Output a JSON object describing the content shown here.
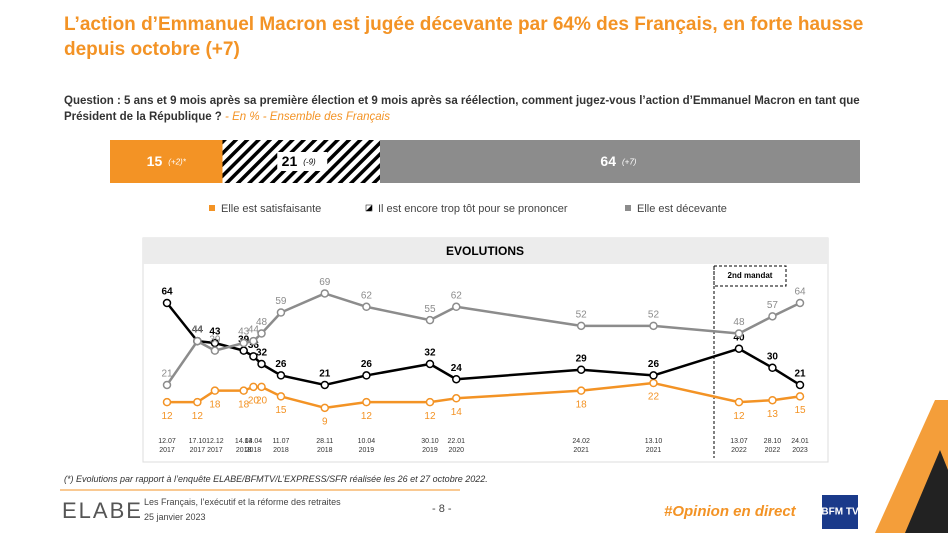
{
  "title": "L’action d’Emmanuel Macron est jugée décevante par 64% des Français, en forte hausse depuis octobre (+7)",
  "question": "Question : 5 ans et 9 mois après sa première élection et 9 mois après sa réélection, comment jugez-vous l’action d’Emmanuel Macron en tant que Président de la République ?",
  "question_note": "- En % - Ensemble des Français",
  "footnote": "(*) Evolutions par rapport à l’enquête ELABE/BFMTV/L’EXPRESS/SFR réalisée les 26 et 27 octobre 2022.",
  "footer": {
    "brand": "ELABE",
    "study": "Les Français, l’exécutif et la réforme des retraites",
    "date": "25 janvier 2023",
    "page": "- 8 -",
    "hashtag": "#Opinion en direct",
    "partner": "BFM TV"
  },
  "chart_data": [
    {
      "type": "stacked_bar",
      "orientation": "horizontal",
      "xlim": [
        0,
        100
      ],
      "legend": "bottom",
      "series": [
        {
          "name": "Elle est satisfaisante",
          "color": "#f39325",
          "pattern": "solid",
          "values": [
            15
          ],
          "change_labels": [
            "(+2)*"
          ]
        },
        {
          "name": "Il est encore trop tôt pour se prononcer",
          "color": "#000000",
          "pattern": "hatch",
          "values": [
            21
          ],
          "change_labels": [
            "(-9)"
          ]
        },
        {
          "name": "Elle est décevante",
          "color": "#8c8c8c",
          "pattern": "solid",
          "values": [
            64
          ],
          "change_labels": [
            "(+7)"
          ]
        }
      ]
    },
    {
      "type": "line",
      "title": "EVOLUTIONS",
      "annotation": "2nd mandat",
      "x": [
        "2017-07-12",
        "2017-10-17",
        "2017-12-12",
        "2018-03-14",
        "2018-04-14",
        "2018-05-10",
        "2018-07-11",
        "2018-11-28",
        "2019-04-10",
        "2019-10-30",
        "2020-01-22",
        "2021-02-24",
        "2021-10-13",
        "2022-07-13",
        "2022-10-28",
        "2023-01-24"
      ],
      "xticks": [
        {
          "value": "2017-07-12",
          "label": "12.07 2017"
        },
        {
          "value": "2017-10-17",
          "label": "17.10 2017"
        },
        {
          "value": "2017-12-12",
          "label": "12.12 2017"
        },
        {
          "value": "2018-03-14",
          "label": "14.03 2018"
        },
        {
          "value": "2018-04-14",
          "label": "14.04 2018"
        },
        {
          "value": "2018-07-11",
          "label": "11.07 2018"
        },
        {
          "value": "2018-11-28",
          "label": "28.11 2018"
        },
        {
          "value": "2019-04-10",
          "label": "10.04 2019"
        },
        {
          "value": "2019-10-30",
          "label": "30.10 2019"
        },
        {
          "value": "2020-01-22",
          "label": "22.01 2020"
        },
        {
          "value": "2021-02-24",
          "label": "24.02 2021"
        },
        {
          "value": "2021-10-13",
          "label": "13.10 2021"
        },
        {
          "value": "2022-07-13",
          "label": "13.07 2022"
        },
        {
          "value": "2022-10-28",
          "label": "28.10 2022"
        },
        {
          "value": "2023-01-24",
          "label": "24.01 2023"
        }
      ],
      "ylim": [
        0,
        75
      ],
      "grid": false,
      "series": [
        {
          "color": "#f39325",
          "values": [
            12,
            12,
            18,
            18,
            20,
            20,
            15,
            9,
            12,
            12,
            14,
            18,
            22,
            12,
            13,
            15
          ]
        },
        {
          "color": "#000000",
          "values": [
            64,
            44,
            43,
            39,
            36,
            32,
            26,
            21,
            26,
            32,
            24,
            29,
            26,
            40,
            30,
            21
          ]
        },
        {
          "color": "#8c8c8c",
          "values": [
            21,
            44,
            39,
            43,
            44,
            48,
            59,
            69,
            62,
            55,
            62,
            52,
            52,
            48,
            57,
            64
          ]
        }
      ]
    }
  ]
}
